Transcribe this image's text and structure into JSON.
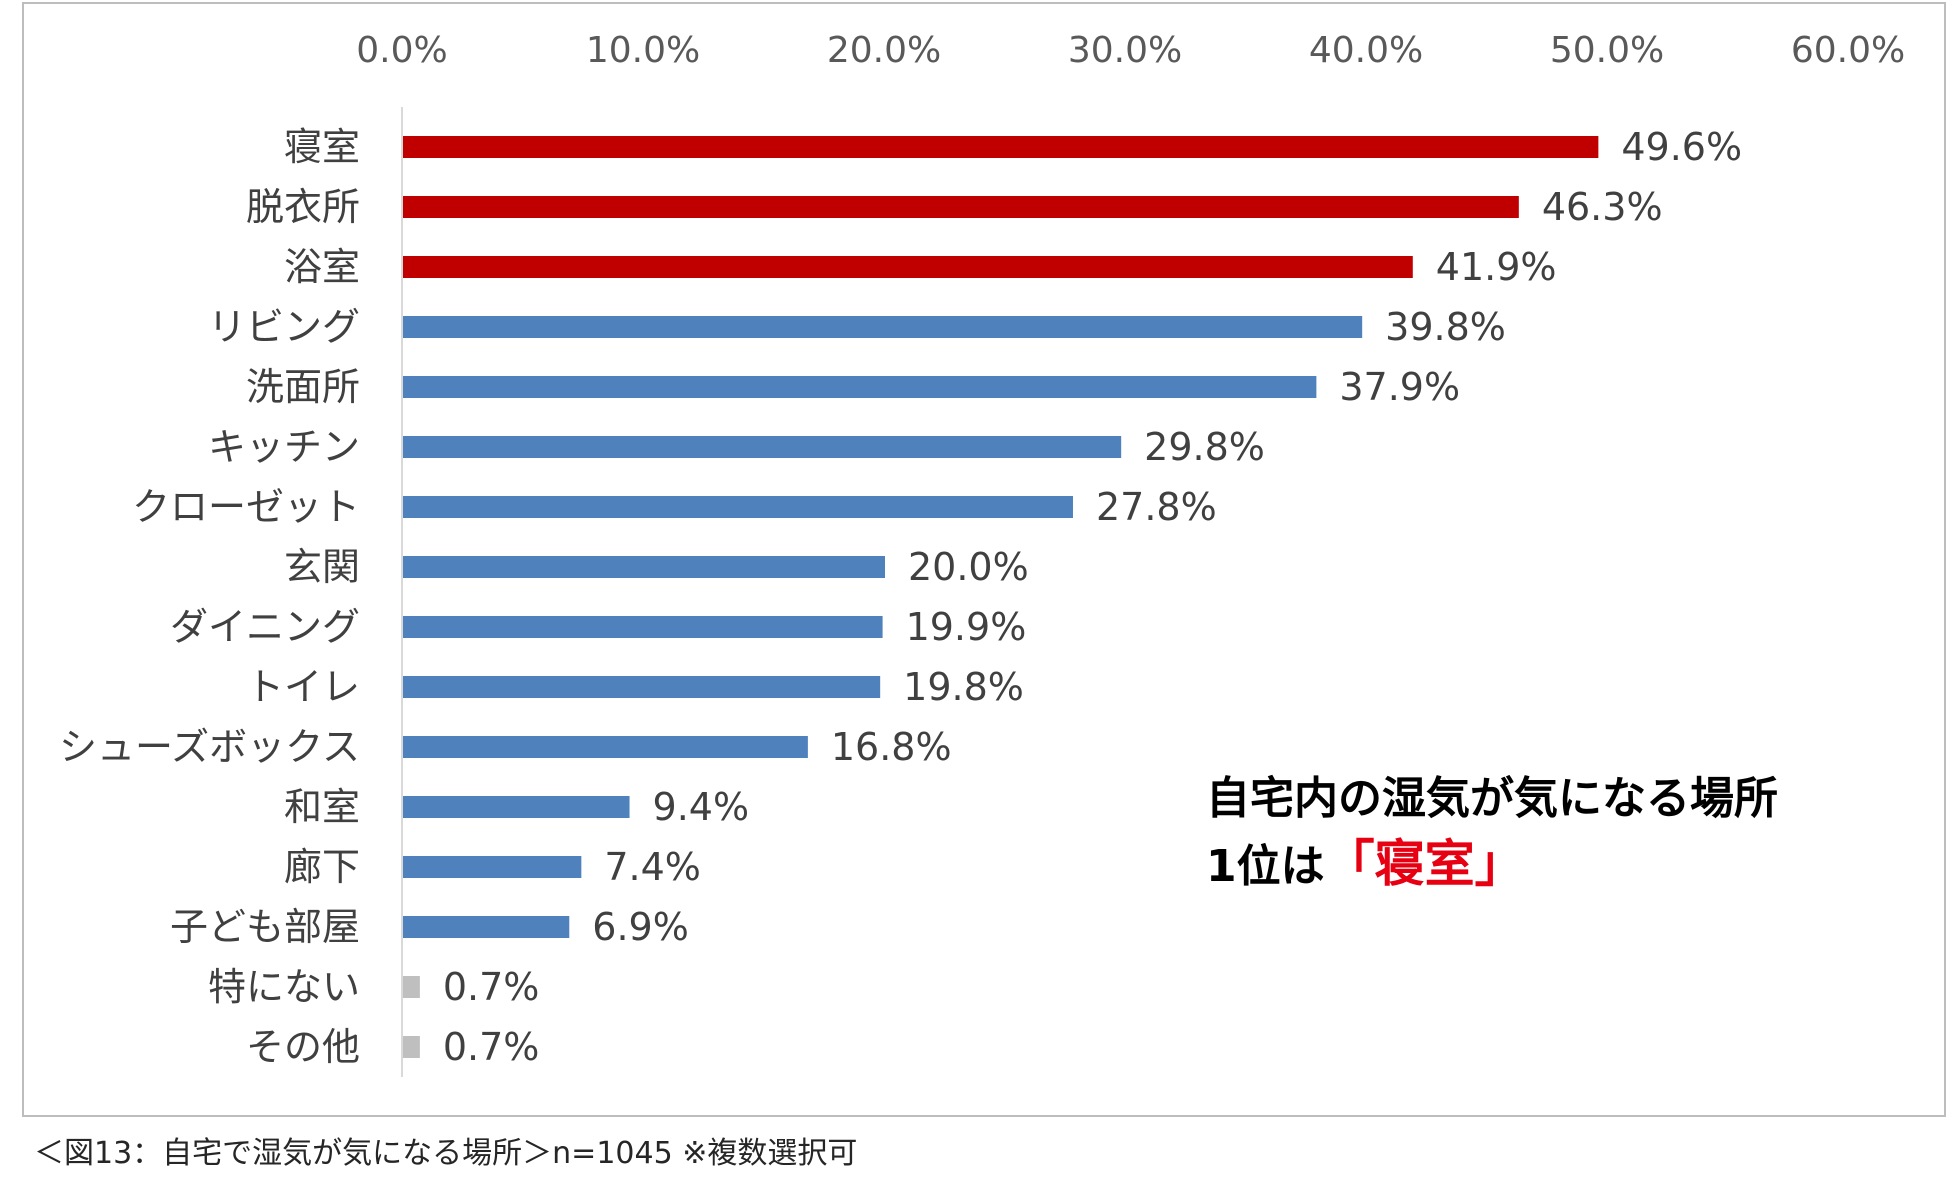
{
  "chart_data": {
    "type": "bar",
    "orientation": "horizontal",
    "axis_position": "top",
    "xlim": [
      0,
      60
    ],
    "ticks": [
      "0.0%",
      "10.0%",
      "20.0%",
      "30.0%",
      "40.0%",
      "50.0%",
      "60.0%"
    ],
    "tick_values": [
      0,
      10,
      20,
      30,
      40,
      50,
      60
    ],
    "categories": [
      "寝室",
      "脱衣所",
      "浴室",
      "リビング",
      "洗面所",
      "キッチン",
      "クローゼット",
      "玄関",
      "ダイニング",
      "トイレ",
      "シューズボックス",
      "和室",
      "廊下",
      "子ども部屋",
      "特にない",
      "その他"
    ],
    "values": [
      49.6,
      46.3,
      41.9,
      39.8,
      37.9,
      29.8,
      27.8,
      20.0,
      19.9,
      19.8,
      16.8,
      9.4,
      7.4,
      6.9,
      0.7,
      0.7
    ],
    "value_labels": [
      "49.6%",
      "46.3%",
      "41.9%",
      "39.8%",
      "37.9%",
      "29.8%",
      "27.8%",
      "20.0%",
      "19.9%",
      "19.8%",
      "16.8%",
      "9.4%",
      "7.4%",
      "6.9%",
      "0.7%",
      "0.7%"
    ],
    "bar_colors": [
      "#c00000",
      "#c00000",
      "#c00000",
      "#4f81bd",
      "#4f81bd",
      "#4f81bd",
      "#4f81bd",
      "#4f81bd",
      "#4f81bd",
      "#4f81bd",
      "#4f81bd",
      "#4f81bd",
      "#4f81bd",
      "#4f81bd",
      "#bfbfbf",
      "#bfbfbf"
    ],
    "grid": false
  },
  "callout": {
    "line1": "自宅内の湿気が気になる場所",
    "line2_prefix": "1位は",
    "line2_highlight": "「寝室」",
    "highlight_color": "#e60012"
  },
  "caption": "＜図13：自宅で湿気が気になる場所＞n=1045 ※複数選択可"
}
